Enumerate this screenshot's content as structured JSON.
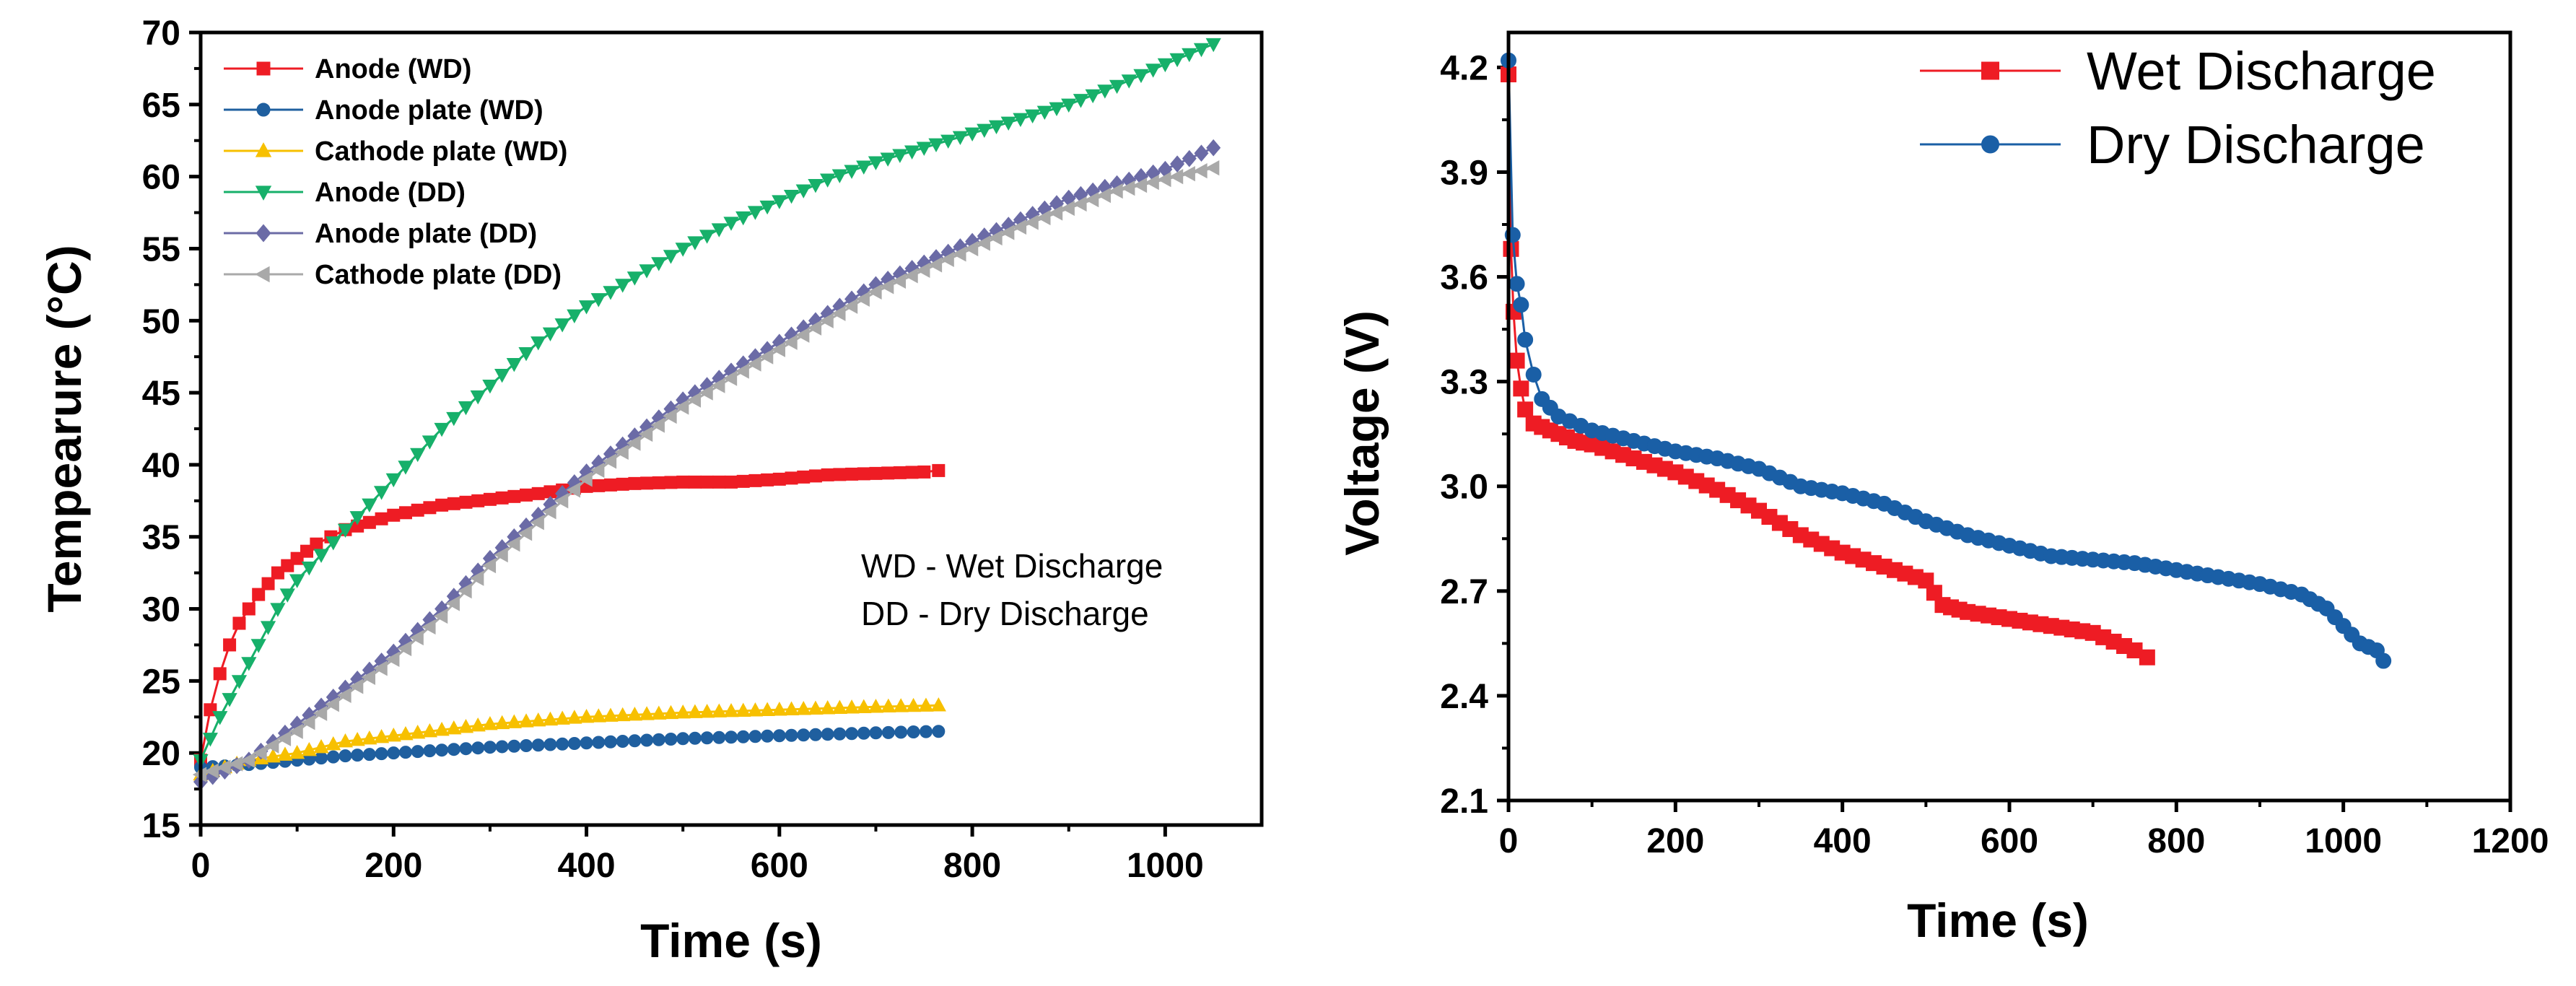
{
  "chart_data": [
    {
      "type": "line",
      "ylabel": "Tempearure (°C)",
      "xlabel": "Time (s)",
      "xlim": [
        0,
        1100
      ],
      "ylim": [
        15,
        70
      ],
      "xticks": [
        0,
        200,
        400,
        600,
        800,
        1000
      ],
      "yticks": [
        15,
        20,
        25,
        30,
        35,
        40,
        45,
        50,
        55,
        60,
        65,
        70
      ],
      "xtick_labels": [
        "0",
        "200",
        "400",
        "600",
        "800",
        "1000"
      ],
      "ytick_labels": [
        "15",
        "20",
        "25",
        "30",
        "35",
        "40",
        "45",
        "50",
        "55",
        "60",
        "65",
        "70"
      ],
      "legend_position": "top-left",
      "annotations": [
        "WD - Wet Discharge",
        "DD - Dry Discharge"
      ],
      "series": [
        {
          "name": "Anode (WD)",
          "color": "#ee1c24",
          "marker": "square",
          "x": [
            0,
            10,
            20,
            30,
            40,
            50,
            60,
            80,
            100,
            120,
            150,
            200,
            250,
            300,
            350,
            400,
            450,
            500,
            550,
            600,
            650,
            700,
            750,
            765
          ],
          "y": [
            19.5,
            23,
            25.5,
            27.5,
            29,
            30,
            31,
            32.5,
            33.5,
            34.5,
            35.5,
            36.5,
            37.2,
            37.6,
            38,
            38.5,
            38.7,
            38.8,
            38.8,
            39,
            39.3,
            39.4,
            39.5,
            39.6
          ]
        },
        {
          "name": "Anode plate (WD)",
          "color": "#1f5f9f",
          "marker": "circle",
          "x": [
            0,
            50,
            100,
            150,
            200,
            300,
            400,
            500,
            600,
            700,
            765
          ],
          "y": [
            19,
            19.2,
            19.5,
            19.8,
            20,
            20.4,
            20.7,
            21,
            21.2,
            21.4,
            21.5
          ]
        },
        {
          "name": "Cathode plate (WD)",
          "color": "#f7c000",
          "marker": "triangle-up",
          "x": [
            0,
            50,
            100,
            150,
            200,
            300,
            400,
            500,
            600,
            700,
            765
          ],
          "y": [
            18.5,
            19.5,
            20,
            20.8,
            21.2,
            22,
            22.5,
            22.8,
            23,
            23.2,
            23.3
          ]
        },
        {
          "name": "Anode (DD)",
          "color": "#17b06a",
          "marker": "triangle-down",
          "x": [
            0,
            20,
            40,
            60,
            80,
            100,
            150,
            200,
            250,
            300,
            350,
            400,
            450,
            500,
            550,
            600,
            650,
            700,
            750,
            800,
            850,
            900,
            950,
            1000,
            1050
          ],
          "y": [
            19.5,
            22.5,
            25,
            27.5,
            30,
            32,
            35.5,
            39,
            42.5,
            45.5,
            48.5,
            51,
            53,
            55,
            56.8,
            58.3,
            59.8,
            61,
            62,
            63,
            64,
            65,
            66.3,
            67.8,
            69.2
          ]
        },
        {
          "name": "Anode plate (DD)",
          "color": "#6b6ba6",
          "marker": "diamond",
          "x": [
            0,
            50,
            100,
            150,
            200,
            250,
            300,
            350,
            400,
            450,
            500,
            550,
            600,
            650,
            700,
            750,
            800,
            850,
            900,
            950,
            1000,
            1050
          ],
          "y": [
            18,
            19.5,
            22,
            24.5,
            27,
            30,
            33.5,
            36.5,
            39.5,
            42,
            44.5,
            46.5,
            48.5,
            50.5,
            52.5,
            54,
            55.5,
            57,
            58.5,
            59.5,
            60.5,
            62
          ]
        },
        {
          "name": "Cathode plate (DD)",
          "color": "#a9a9a9",
          "marker": "triangle-left",
          "x": [
            0,
            50,
            100,
            150,
            200,
            250,
            300,
            350,
            400,
            450,
            500,
            550,
            600,
            650,
            700,
            750,
            800,
            850,
            900,
            950,
            1000,
            1050
          ],
          "y": [
            18.5,
            19.5,
            21.5,
            24,
            26.5,
            29.5,
            33,
            36,
            39,
            41.5,
            44,
            46,
            48,
            50,
            52,
            53.5,
            55,
            56.5,
            57.8,
            59,
            59.8,
            60.6
          ]
        }
      ]
    },
    {
      "type": "line",
      "ylabel": "Voltage (V)",
      "xlabel": "Time (s)",
      "xlim": [
        0,
        1200
      ],
      "ylim": [
        2.1,
        4.3
      ],
      "xticks": [
        0,
        200,
        400,
        600,
        800,
        1000,
        1200
      ],
      "yticks": [
        2.1,
        2.4,
        2.7,
        3.0,
        3.3,
        3.6,
        3.9,
        4.2
      ],
      "xtick_labels": [
        "0",
        "200",
        "400",
        "600",
        "800",
        "1000",
        "1200"
      ],
      "ytick_labels": [
        "2.1",
        "2.4",
        "2.7",
        "3.0",
        "3.3",
        "3.6",
        "3.9",
        "4.2"
      ],
      "legend_position": "top-right",
      "series": [
        {
          "name": "Wet Discharge",
          "color": "#ee1c24",
          "marker": "square",
          "x": [
            0,
            3,
            6,
            10,
            15,
            20,
            30,
            50,
            80,
            100,
            150,
            200,
            250,
            300,
            350,
            400,
            450,
            500,
            520,
            550,
            600,
            650,
            700,
            750,
            765
          ],
          "y": [
            4.18,
            3.68,
            3.5,
            3.36,
            3.28,
            3.22,
            3.18,
            3.16,
            3.13,
            3.12,
            3.08,
            3.04,
            2.99,
            2.93,
            2.86,
            2.81,
            2.77,
            2.73,
            2.66,
            2.64,
            2.62,
            2.6,
            2.58,
            2.53,
            2.51
          ]
        },
        {
          "name": "Dry Discharge",
          "color": "#1a5fa6",
          "marker": "circle",
          "x": [
            0,
            5,
            10,
            15,
            20,
            30,
            40,
            60,
            100,
            150,
            200,
            250,
            300,
            350,
            400,
            450,
            500,
            550,
            600,
            650,
            700,
            750,
            800,
            850,
            900,
            950,
            980,
            1000,
            1020,
            1040,
            1048
          ],
          "y": [
            4.22,
            3.72,
            3.58,
            3.52,
            3.42,
            3.32,
            3.25,
            3.2,
            3.16,
            3.13,
            3.1,
            3.08,
            3.05,
            3.0,
            2.98,
            2.95,
            2.9,
            2.86,
            2.83,
            2.8,
            2.79,
            2.78,
            2.76,
            2.74,
            2.72,
            2.69,
            2.65,
            2.6,
            2.55,
            2.53,
            2.5
          ]
        }
      ]
    }
  ]
}
